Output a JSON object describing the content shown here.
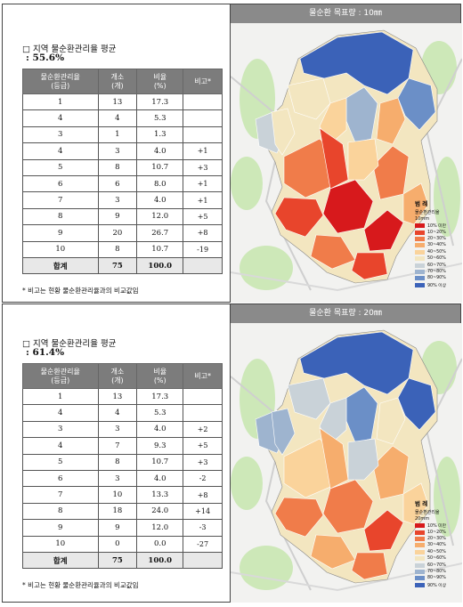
{
  "legend_title": "범 례",
  "legend_subtitle": "물순환관리율",
  "legend_items": [
    "10% 미만",
    "10~20%",
    "20~30%",
    "30~40%",
    "40~50%",
    "50~60%",
    "60~70%",
    "70~80%",
    "80~90%",
    "90% 이상"
  ],
  "legend_colors": [
    "#d7191c",
    "#e8452c",
    "#f07c4a",
    "#f6ad6d",
    "#fad39b",
    "#f3e6c0",
    "#c9d2d8",
    "#9eb4cf",
    "#6b8fc7",
    "#3b62b8"
  ],
  "panels": [
    {
      "heading": "□ 지역 물순환관리율 평균",
      "average": ": 55.6%",
      "headers": [
        "물순환관리율\n(등급)",
        "개소\n(개)",
        "비율\n(%)",
        "비고*"
      ],
      "rows": [
        {
          "grade": "1",
          "count": "13",
          "ratio": "17.3",
          "cmp": ""
        },
        {
          "grade": "4",
          "count": "4",
          "ratio": "5.3",
          "cmp": ""
        },
        {
          "grade": "3",
          "count": "1",
          "ratio": "1.3",
          "cmp": ""
        },
        {
          "grade": "4",
          "count": "3",
          "ratio": "4.0",
          "cmp": "+1"
        },
        {
          "grade": "5",
          "count": "8",
          "ratio": "10.7",
          "cmp": "+3"
        },
        {
          "grade": "6",
          "count": "6",
          "ratio": "8.0",
          "cmp": "+1"
        },
        {
          "grade": "7",
          "count": "3",
          "ratio": "4.0",
          "cmp": "+1"
        },
        {
          "grade": "8",
          "count": "9",
          "ratio": "12.0",
          "cmp": "+5"
        },
        {
          "grade": "9",
          "count": "20",
          "ratio": "26.7",
          "cmp": "+8"
        },
        {
          "grade": "10",
          "count": "8",
          "ratio": "10.7",
          "cmp": "-19"
        }
      ],
      "total": {
        "label": "합계",
        "count": "75",
        "ratio": "100.0"
      },
      "note": "* 비고는 현황 물순환관리율과의 비교값임",
      "map_title": "물순환 목표량 : 10㎜",
      "legend_unit": "10mm",
      "region_colors": [
        "#3b62b8",
        "#6b8fc7",
        "#9eb4cf",
        "#c9d2d8",
        "#f3e6c0",
        "#fad39b",
        "#f6ad6d",
        "#f07c4a",
        "#e8452c",
        "#d7191c",
        "#f07c4a",
        "#fad39b",
        "#f3e6c0",
        "#e8452c",
        "#d7191c",
        "#f07c4a",
        "#f6ad6d",
        "#e8452c"
      ]
    },
    {
      "heading": "□ 지역 물순환관리율 평균",
      "average": ": 61.4%",
      "headers": [
        "물순환관리율\n(등급)",
        "개소\n(개)",
        "비율\n(%)",
        "비고*"
      ],
      "rows": [
        {
          "grade": "1",
          "count": "13",
          "ratio": "17.3",
          "cmp": ""
        },
        {
          "grade": "4",
          "count": "4",
          "ratio": "5.3",
          "cmp": ""
        },
        {
          "grade": "3",
          "count": "3",
          "ratio": "4.0",
          "cmp": "+2"
        },
        {
          "grade": "4",
          "count": "7",
          "ratio": "9.3",
          "cmp": "+5"
        },
        {
          "grade": "5",
          "count": "8",
          "ratio": "10.7",
          "cmp": "+3"
        },
        {
          "grade": "6",
          "count": "3",
          "ratio": "4.0",
          "cmp": "-2"
        },
        {
          "grade": "7",
          "count": "10",
          "ratio": "13.3",
          "cmp": "+8"
        },
        {
          "grade": "8",
          "count": "18",
          "ratio": "24.0",
          "cmp": "+14"
        },
        {
          "grade": "9",
          "count": "9",
          "ratio": "12.0",
          "cmp": "-3"
        },
        {
          "grade": "10",
          "count": "0",
          "ratio": "0.0",
          "cmp": "-27"
        }
      ],
      "total": {
        "label": "합계",
        "count": "75",
        "ratio": "100.0"
      },
      "note": "* 비고는 현황 물순환관리율과의 비교값임",
      "map_title": "물순환 목표량 : 20㎜",
      "legend_unit": "20mm",
      "region_colors": [
        "#3b62b8",
        "#3b62b8",
        "#6b8fc7",
        "#9eb4cf",
        "#c9d2d8",
        "#c9d2d8",
        "#f3e6c0",
        "#fad39b",
        "#f6ad6d",
        "#f07c4a",
        "#f6ad6d",
        "#c9d2d8",
        "#9eb4cf",
        "#f07c4a",
        "#e8452c",
        "#f6ad6d",
        "#fad39b",
        "#f07c4a"
      ]
    }
  ]
}
